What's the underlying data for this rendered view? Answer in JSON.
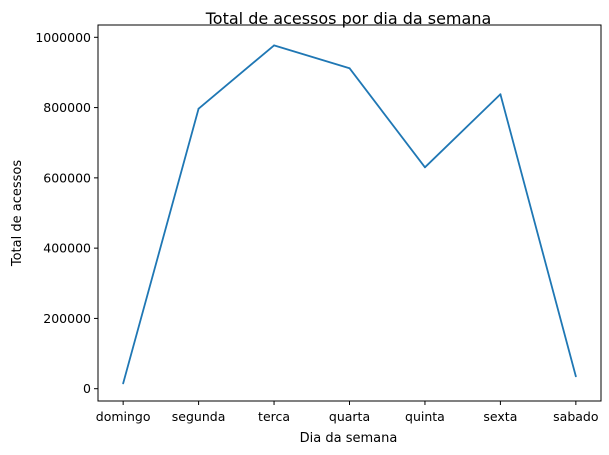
{
  "chart_data": {
    "type": "line",
    "title": "Total de acessos por dia da semana",
    "xlabel": "Dia da semana",
    "ylabel": "Total de acessos",
    "categories": [
      "domingo",
      "segunda",
      "terca",
      "quarta",
      "quinta",
      "sexta",
      "sabado"
    ],
    "series": [
      {
        "values": [
          15000,
          797000,
          977000,
          912000,
          630000,
          838000,
          35000
        ]
      }
    ],
    "yticks": [
      0,
      200000,
      400000,
      600000,
      800000,
      1000000
    ],
    "ylim": [
      -35000,
      1035000
    ],
    "grid": false,
    "line_color": "#1f77b4"
  }
}
